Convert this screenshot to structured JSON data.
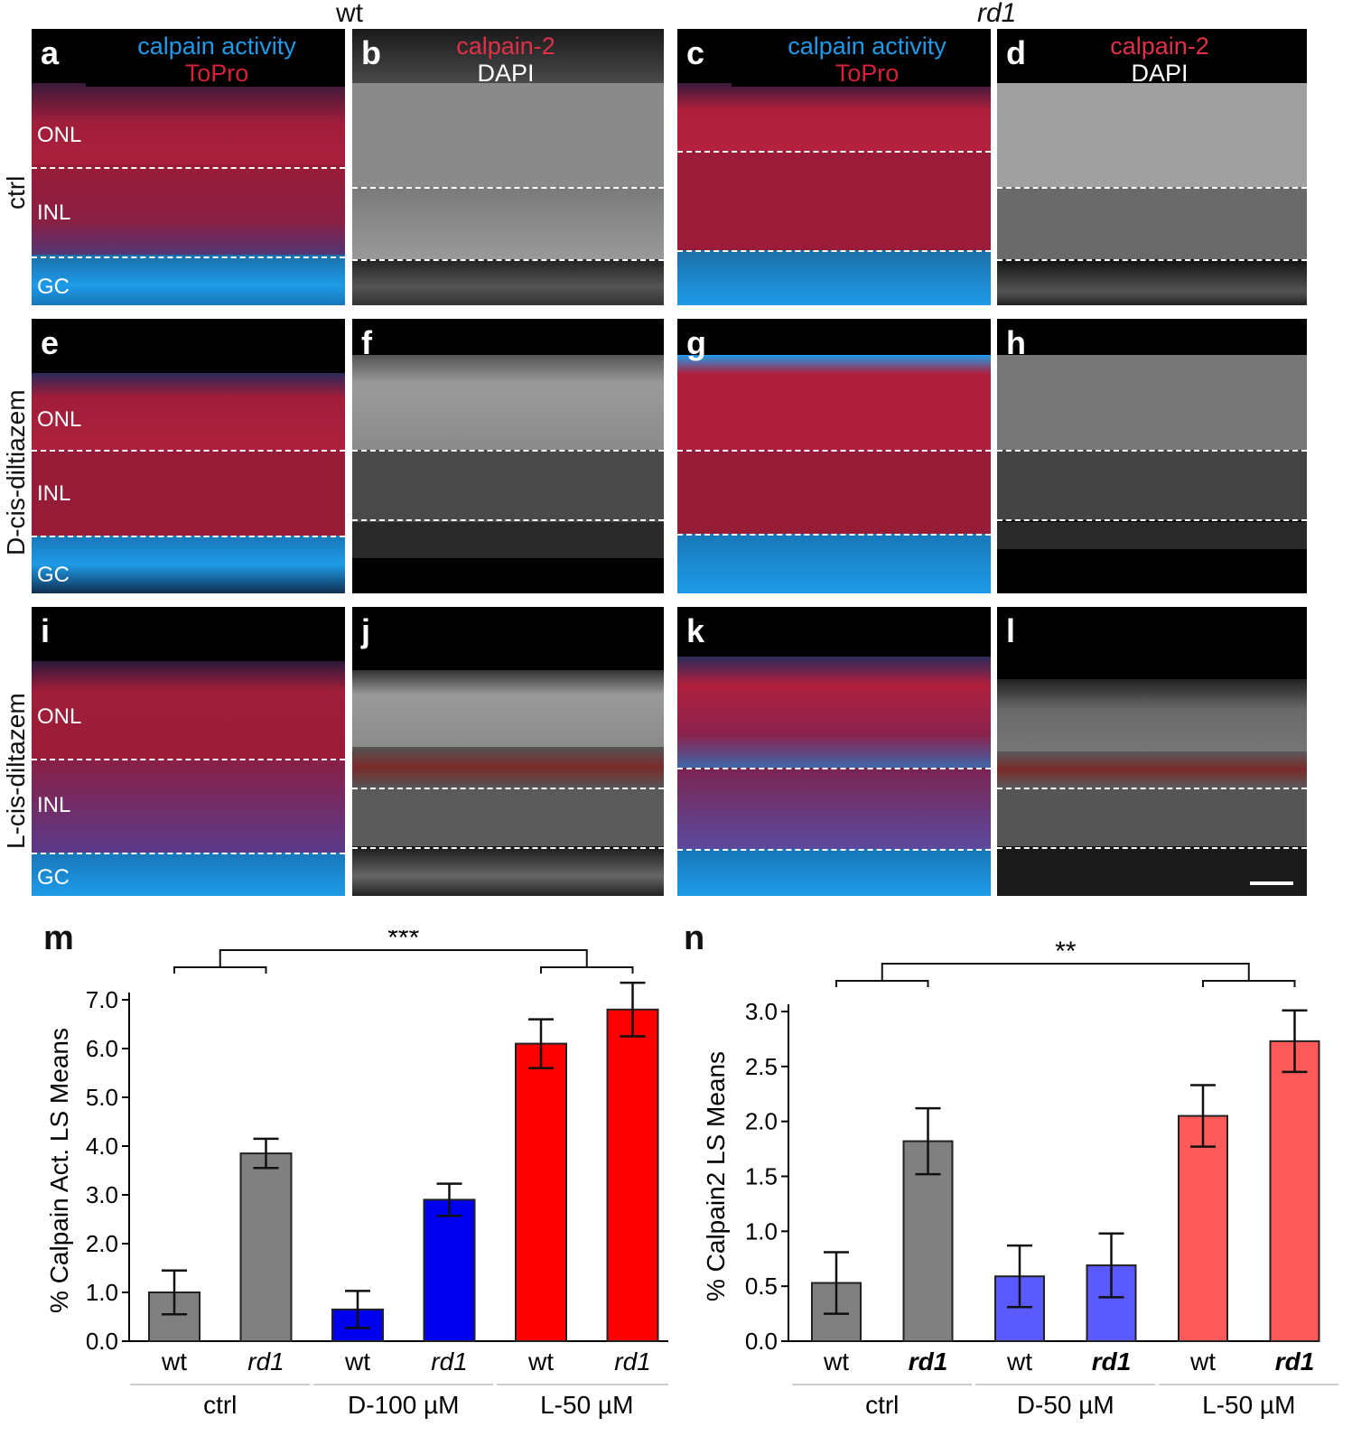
{
  "columns": {
    "wt": "wt",
    "rd1": "rd1"
  },
  "rows": {
    "ctrl": "ctrl",
    "d": "D-cis-diltiazem",
    "l": "L-cis-diltazem"
  },
  "legends": {
    "calpain_activity": "calpain activity",
    "topro": "ToPro",
    "calpain2": "calpain-2",
    "dapi": "DAPI"
  },
  "layers": {
    "onl": "ONL",
    "inl": "INL",
    "gc": "GC"
  },
  "panels": [
    "a",
    "b",
    "c",
    "d",
    "e",
    "f",
    "g",
    "h",
    "i",
    "j",
    "k",
    "l"
  ],
  "colors": {
    "blue": "#1e9be8",
    "red": "#d8203a",
    "gray": "#808080",
    "bar_blue": "#0000ee",
    "bar_red": "#ff0000",
    "bar_blue_light": "#5a5aff",
    "bar_red_light": "#ff5a5a"
  },
  "chart_data": [
    {
      "type": "bar",
      "panel": "m",
      "ylabel": "% Calpain Act. LS Means",
      "ylim": [
        0,
        7.0
      ],
      "yticks": [
        "0.0",
        "1.0",
        "2.0",
        "3.0",
        "4.0",
        "5.0",
        "6.0",
        "7.0"
      ],
      "categories": [
        "wt",
        "rd1",
        "wt",
        "rd1",
        "wt",
        "rd1"
      ],
      "groups": [
        "ctrl",
        "D-100 µM",
        "L-50 µM"
      ],
      "values": [
        1.0,
        3.85,
        0.65,
        2.9,
        6.1,
        6.8
      ],
      "errors": [
        0.45,
        0.3,
        0.38,
        0.33,
        0.5,
        0.55
      ],
      "significance": "***"
    },
    {
      "type": "bar",
      "panel": "n",
      "ylabel": "% Calpain2 LS Means",
      "ylim": [
        0,
        3.0
      ],
      "yticks": [
        "0.0",
        "0.5",
        "1.0",
        "1.5",
        "2.0",
        "2.5",
        "3.0"
      ],
      "categories": [
        "wt",
        "rd1",
        "wt",
        "rd1",
        "wt",
        "rd1"
      ],
      "groups": [
        "ctrl",
        "D-50 µM",
        "L-50 µM"
      ],
      "values": [
        0.53,
        1.82,
        0.59,
        0.69,
        2.05,
        2.73
      ],
      "errors": [
        0.28,
        0.3,
        0.28,
        0.29,
        0.28,
        0.28
      ],
      "significance": "**"
    }
  ]
}
